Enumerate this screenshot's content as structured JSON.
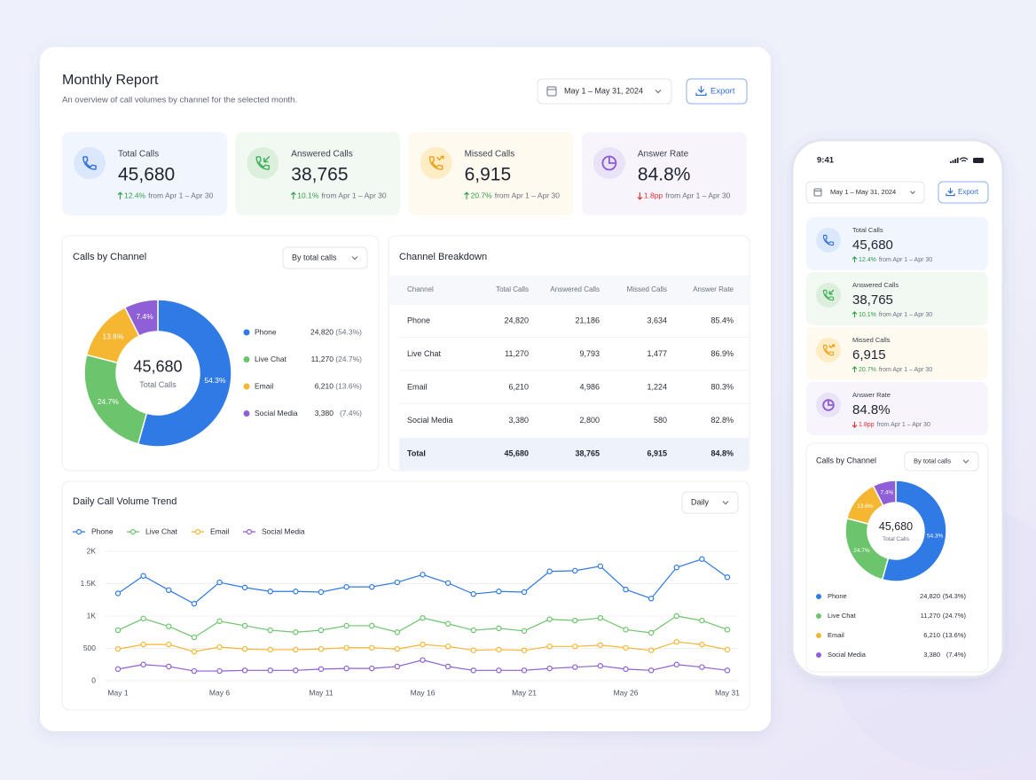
{
  "status_bar": {
    "time": "9:41"
  },
  "header": {
    "title": "Monthly Report",
    "subtitle": "An overview of call volumes by channel for the selected month.",
    "date_range": "May 1 – May 31, 2024",
    "export": "Export"
  },
  "kpis": [
    {
      "label": "Total Calls",
      "value": "45,680",
      "change": "12.4%",
      "direction": "up",
      "period": "from Apr 1 – Apr 30"
    },
    {
      "label": "Answered Calls",
      "value": "38,765",
      "change": "10.1%",
      "direction": "up",
      "period": "from Apr 1 – Apr 30"
    },
    {
      "label": "Missed Calls",
      "value": "6,915",
      "change": "20.7%",
      "direction": "up",
      "period": "from Apr 1 – Apr 30"
    },
    {
      "label": "Answer Rate",
      "value": "84.8%",
      "change": "1.8pp",
      "direction": "down",
      "period": "from Apr 1 – Apr 30"
    }
  ],
  "channels": {
    "title": "Calls by Channel",
    "dropdown": "By total calls",
    "chart_data": {
      "type": "donut",
      "center_value": "45,680",
      "center_label": "Total Calls",
      "categories": [
        "Phone",
        "Live Chat",
        "Email",
        "Social Media"
      ],
      "values": [
        24820,
        11270,
        6210,
        3380
      ],
      "value_labels": [
        "24,820",
        "11,270",
        "6,210",
        "3,380"
      ],
      "percents": [
        54.3,
        24.7,
        13.6,
        7.4
      ],
      "percent_labels": [
        "54.3%",
        "24.7%",
        "13.6%",
        "7.4%"
      ],
      "legend_percent_labels": [
        "(54.3%)",
        "(24.7%)",
        "(13.6%)",
        "(7.4%)"
      ],
      "colors": [
        "#2f7ae5",
        "#6cc56c",
        "#f5b731",
        "#8e5fd6"
      ]
    }
  },
  "breakdown": {
    "title": "Channel Breakdown",
    "columns": [
      "Channel",
      "Total Calls",
      "Answered Calls",
      "Missed Calls",
      "Answer Rate"
    ],
    "rows": [
      [
        "Phone",
        "24,820",
        "21,186",
        "3,634",
        "85.4%"
      ],
      [
        "Live Chat",
        "11,270",
        "9,793",
        "1,477",
        "86.9%"
      ],
      [
        "Email",
        "6,210",
        "4,986",
        "1,224",
        "80.3%"
      ],
      [
        "Social Media",
        "3,380",
        "2,800",
        "580",
        "82.8%"
      ]
    ],
    "total": [
      "Total",
      "45,680",
      "38,765",
      "6,915",
      "84.8%"
    ]
  },
  "trend": {
    "title": "Daily Call Volume Trend",
    "dropdown": "Daily",
    "chart_data": {
      "type": "line",
      "categories": [
        "May 1",
        null,
        null,
        null,
        "May 6",
        null,
        null,
        null,
        "May 11",
        null,
        null,
        null,
        "May 16",
        null,
        null,
        null,
        "May 21",
        null,
        null,
        null,
        "May 26",
        null,
        null,
        null,
        "May 31"
      ],
      "series": [
        {
          "name": "Phone",
          "color": "#2f7ae5",
          "values": [
            1350,
            1620,
            1400,
            1190,
            1520,
            1440,
            1380,
            1380,
            1370,
            1450,
            1450,
            1520,
            1640,
            1510,
            1340,
            1380,
            1370,
            1690,
            1700,
            1770,
            1410,
            1270,
            1750,
            1880,
            1600
          ]
        },
        {
          "name": "Live Chat",
          "color": "#6cc56c",
          "values": [
            780,
            960,
            840,
            670,
            920,
            850,
            780,
            750,
            780,
            850,
            850,
            750,
            970,
            880,
            780,
            810,
            770,
            950,
            930,
            970,
            790,
            740,
            1000,
            930,
            790
          ]
        },
        {
          "name": "Email",
          "color": "#f5b731",
          "values": [
            490,
            560,
            560,
            450,
            520,
            490,
            480,
            480,
            490,
            510,
            510,
            490,
            560,
            530,
            470,
            480,
            470,
            530,
            530,
            550,
            510,
            470,
            600,
            560,
            480
          ]
        },
        {
          "name": "Social Media",
          "color": "#8e5fd6",
          "values": [
            180,
            250,
            220,
            150,
            150,
            160,
            160,
            160,
            180,
            190,
            190,
            220,
            320,
            220,
            160,
            160,
            160,
            190,
            210,
            230,
            180,
            160,
            250,
            210,
            160
          ]
        }
      ],
      "ylim": [
        0,
        2000
      ],
      "yticks": [
        0,
        500,
        {
          "value": 1000,
          "label": "1K"
        },
        {
          "value": 1500,
          "label": "1.5K"
        },
        {
          "value": 2000,
          "label": "2K"
        }
      ],
      "grid": true,
      "legend": "top-left"
    }
  }
}
